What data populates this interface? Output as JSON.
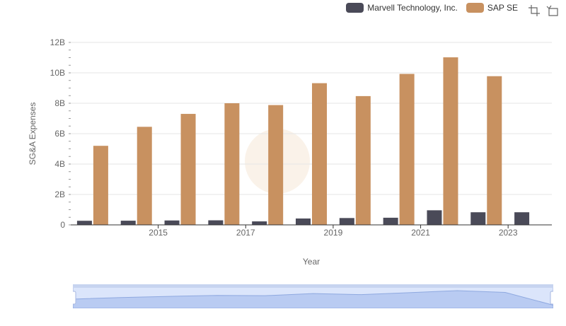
{
  "chart_data": {
    "type": "bar",
    "title": "",
    "xlabel": "Year",
    "ylabel": "SG&A Expenses",
    "categories": [
      "2014",
      "2015",
      "2016",
      "2017",
      "2018",
      "2019",
      "2020",
      "2021",
      "2022",
      "2023",
      "2024"
    ],
    "x_tick_labels": [
      "2015",
      "2017",
      "2019",
      "2021",
      "2023"
    ],
    "y_tick_labels": [
      "0",
      "2B",
      "4B",
      "6B",
      "8B",
      "10B",
      "12B"
    ],
    "ylim": [
      0,
      12000000000
    ],
    "grid": true,
    "legend_position": "top-right",
    "series": [
      {
        "name": "Marvell Technology, Inc.",
        "color": "#4a4a58",
        "values": [
          270000000,
          275000000,
          290000000,
          300000000,
          230000000,
          420000000,
          450000000,
          470000000,
          960000000,
          830000000,
          830000000
        ]
      },
      {
        "name": "SAP SE",
        "color": "#c89160",
        "values": [
          5200000000,
          6450000000,
          7300000000,
          8000000000,
          7880000000,
          9320000000,
          8470000000,
          9930000000,
          11020000000,
          9780000000,
          null
        ]
      }
    ]
  },
  "legend": {
    "items": [
      {
        "label": "Marvell Technology, Inc.",
        "color": "#4a4a58"
      },
      {
        "label": "SAP SE",
        "color": "#c89160"
      }
    ]
  },
  "toolbox": {
    "icons": [
      "zoom-icon",
      "restore-icon"
    ]
  },
  "colors": {
    "grid": "#e6e6e6",
    "axis": "#333333",
    "zoom_fill": "#dbe5fb",
    "zoom_border": "#a7b7e0",
    "watermark": "#f5e6d3"
  }
}
